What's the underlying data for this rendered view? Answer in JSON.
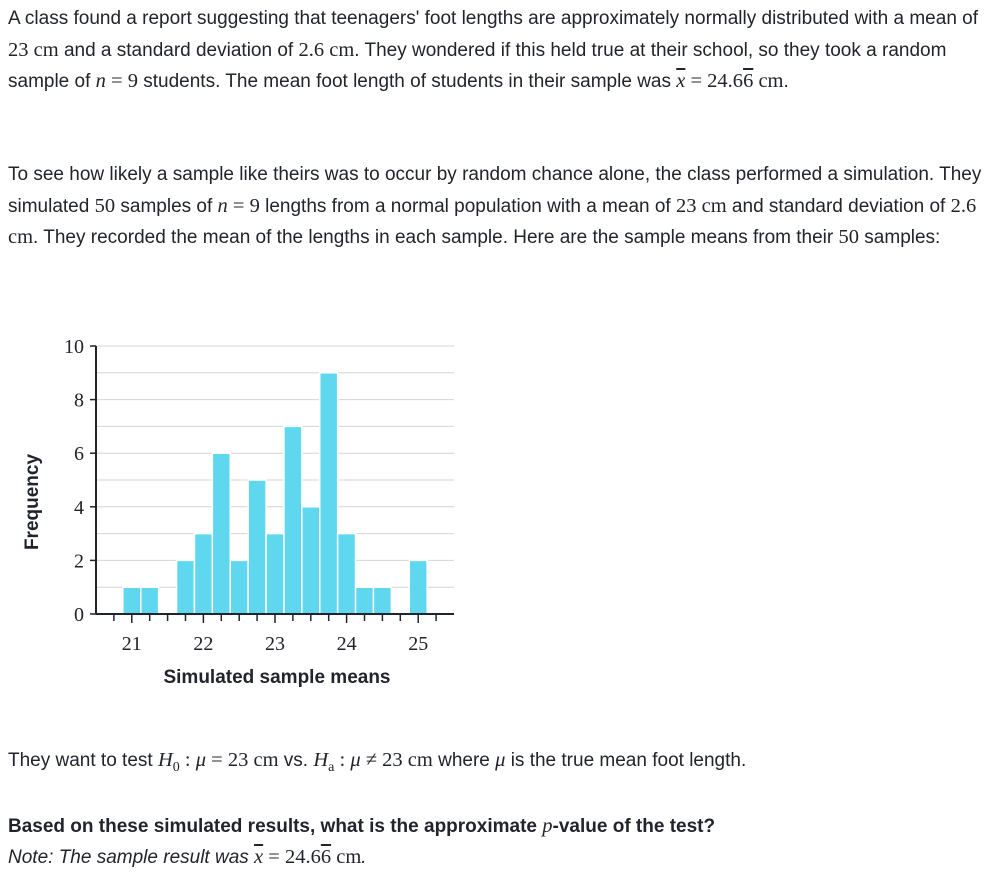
{
  "intro": {
    "part1": "A class found a report suggesting that teenagers' foot lengths are approximately normally distributed with a mean of ",
    "pop_mean": "23 cm",
    "part2": " and a standard deviation of ",
    "pop_sd": "2.6 cm",
    "part3": ". They wondered if this held true at their school, so they took a random sample of ",
    "n_var": "n",
    "n_eq": " = 9",
    "part4": " students. The mean foot length of students in their sample was ",
    "xbar_eq": " = 24.6",
    "xbar_rep": "6",
    "xbar_unit": " cm",
    "part5": "."
  },
  "simulation": {
    "part1": "To see how likely a sample like theirs was to occur by random chance alone, the class performed a simulation. They simulated ",
    "num_samples": "50",
    "part2": " samples of ",
    "n_var": "n",
    "n_eq": " = 9",
    "part3": " lengths from a normal population with a mean of ",
    "mean": "23 cm",
    "part4": " and standard deviation of ",
    "sd": "2.6 cm",
    "part5": ". They recorded the mean of the lengths in each sample. Here are the sample means from their ",
    "num_samples2": "50",
    "part6": " samples:"
  },
  "hypotheses": {
    "part1": "They want to test ",
    "h0_H": "H",
    "h0_sub": "0",
    "h0_rest": " : ",
    "mu1": "μ",
    "h0_val": " = 23 cm",
    "vs": " vs. ",
    "ha_H": "H",
    "ha_sub": "a",
    "ha_rest": " : ",
    "mu2": "μ",
    "ha_val": " ≠ 23 cm",
    "part2": " where ",
    "mu3": "μ",
    "part3": " is the true mean foot length."
  },
  "question": {
    "part1": "Based on these simulated results, what is the approximate ",
    "p_var": "p",
    "part2": "-value of the test?"
  },
  "note": {
    "label": "Note: The sample result was ",
    "xbar_eq": " = 24.6",
    "xbar_rep": "6",
    "xbar_unit": " cm",
    "end": "."
  },
  "chart_data": {
    "type": "bar",
    "xlabel": "Simulated sample means",
    "ylabel": "Frequency",
    "bin_width": 0.25,
    "x_ticks": [
      21,
      22,
      23,
      24,
      25
    ],
    "y_ticks": [
      0,
      2,
      4,
      6,
      8,
      10
    ],
    "ylim": [
      0,
      10
    ],
    "xlim": [
      20.5,
      25.5
    ],
    "grid": true,
    "bar_color": "#5fd8ef",
    "bins": [
      {
        "x": 20.75,
        "count": 0
      },
      {
        "x": 21.0,
        "count": 1
      },
      {
        "x": 21.25,
        "count": 1
      },
      {
        "x": 21.5,
        "count": 0
      },
      {
        "x": 21.75,
        "count": 2
      },
      {
        "x": 22.0,
        "count": 3
      },
      {
        "x": 22.25,
        "count": 6
      },
      {
        "x": 22.5,
        "count": 2
      },
      {
        "x": 22.75,
        "count": 5
      },
      {
        "x": 23.0,
        "count": 3
      },
      {
        "x": 23.25,
        "count": 7
      },
      {
        "x": 23.5,
        "count": 4
      },
      {
        "x": 23.75,
        "count": 9
      },
      {
        "x": 24.0,
        "count": 3
      },
      {
        "x": 24.25,
        "count": 1
      },
      {
        "x": 24.5,
        "count": 1
      },
      {
        "x": 24.75,
        "count": 0
      },
      {
        "x": 25.0,
        "count": 2
      },
      {
        "x": 25.25,
        "count": 0
      }
    ]
  }
}
